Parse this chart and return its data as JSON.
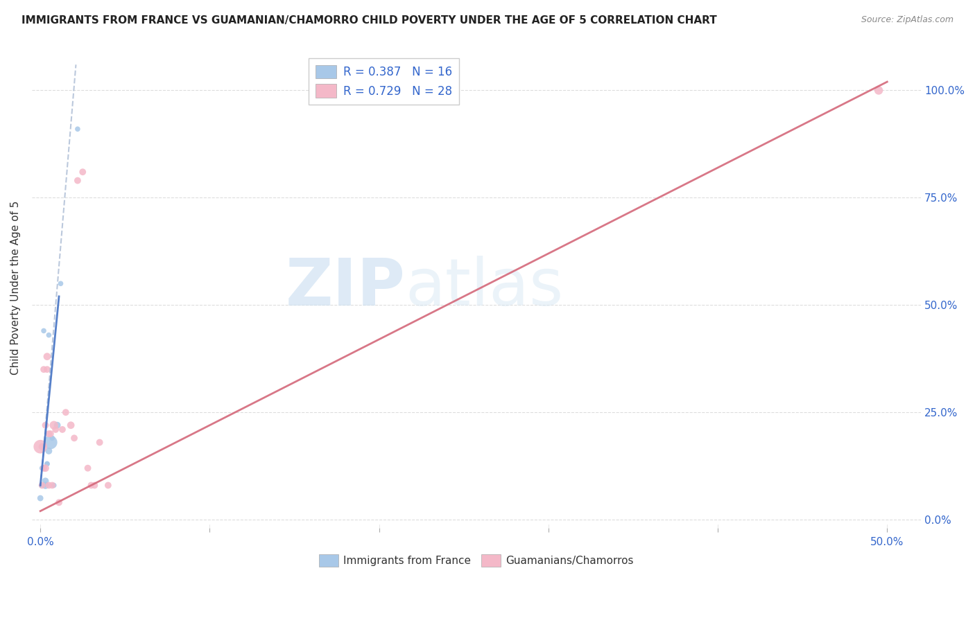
{
  "title": "IMMIGRANTS FROM FRANCE VS GUAMANIAN/CHAMORRO CHILD POVERTY UNDER THE AGE OF 5 CORRELATION CHART",
  "source": "Source: ZipAtlas.com",
  "ylabel": "Child Poverty Under the Age of 5",
  "blue_color": "#a8c8e8",
  "pink_color": "#f4b8c8",
  "trend_blue_color": "#4472c4",
  "trend_pink_color": "#d4687a",
  "watermark_zip": "ZIP",
  "watermark_atlas": "atlas",
  "xlim": [
    -0.005,
    0.52
  ],
  "ylim": [
    -0.02,
    1.1
  ],
  "x_tick_positions": [
    0.0,
    0.1,
    0.2,
    0.3,
    0.4,
    0.5
  ],
  "x_tick_labels": [
    "0.0%",
    "",
    "",
    "",
    "",
    "50.0%"
  ],
  "y_tick_positions": [
    0.0,
    0.25,
    0.5,
    0.75,
    1.0
  ],
  "y_tick_labels": [
    "0.0%",
    "25.0%",
    "50.0%",
    "75.0%",
    "100.0%"
  ],
  "grid_color": "#dddddd",
  "background_color": "#ffffff",
  "france_x": [
    0.0,
    0.001,
    0.002,
    0.002,
    0.003,
    0.003,
    0.004,
    0.004,
    0.005,
    0.005,
    0.006,
    0.007,
    0.008,
    0.01,
    0.012,
    0.022
  ],
  "france_y": [
    0.05,
    0.12,
    0.08,
    0.44,
    0.08,
    0.09,
    0.13,
    0.13,
    0.16,
    0.43,
    0.18,
    0.19,
    0.08,
    0.22,
    0.55,
    0.91
  ],
  "france_size": [
    40,
    30,
    30,
    30,
    60,
    50,
    30,
    30,
    50,
    30,
    200,
    30,
    30,
    50,
    30,
    30
  ],
  "guam_x": [
    0.0,
    0.001,
    0.001,
    0.002,
    0.002,
    0.003,
    0.003,
    0.004,
    0.004,
    0.005,
    0.005,
    0.006,
    0.007,
    0.008,
    0.009,
    0.011,
    0.013,
    0.015,
    0.018,
    0.02,
    0.022,
    0.025,
    0.028,
    0.03,
    0.032,
    0.035,
    0.04,
    0.495
  ],
  "guam_y": [
    0.17,
    0.08,
    0.17,
    0.12,
    0.35,
    0.12,
    0.22,
    0.35,
    0.38,
    0.2,
    0.08,
    0.2,
    0.08,
    0.22,
    0.21,
    0.04,
    0.21,
    0.25,
    0.22,
    0.19,
    0.79,
    0.81,
    0.12,
    0.08,
    0.08,
    0.18,
    0.08,
    1.0
  ],
  "guam_size": [
    200,
    50,
    50,
    50,
    50,
    60,
    50,
    50,
    60,
    50,
    50,
    50,
    50,
    80,
    50,
    50,
    50,
    50,
    60,
    50,
    50,
    50,
    50,
    50,
    50,
    50,
    50,
    80
  ],
  "france_trend_x": [
    0.0,
    0.021
  ],
  "france_trend_y": [
    0.075,
    1.06
  ],
  "guam_trend_x": [
    0.0,
    0.5
  ],
  "guam_trend_y": [
    0.02,
    1.02
  ],
  "bottom_legend": [
    "Immigrants from France",
    "Guamanians/Chamorros"
  ],
  "legend_r1": "R = 0.387",
  "legend_n1": "N = 16",
  "legend_r2": "R = 0.729",
  "legend_n2": "N = 28"
}
